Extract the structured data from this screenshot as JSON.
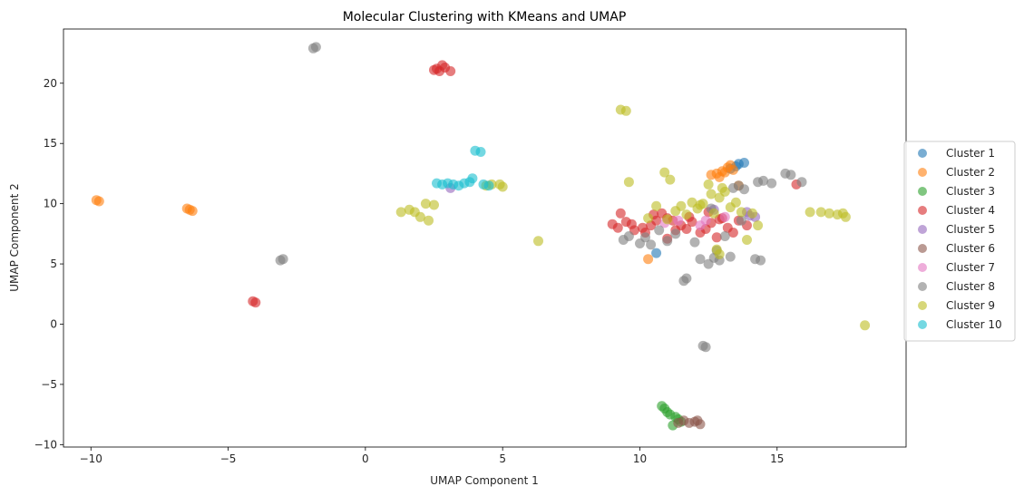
{
  "chart_data": {
    "type": "scatter",
    "title": "Molecular Clustering with KMeans and UMAP",
    "xlabel": "UMAP Component 1",
    "ylabel": "UMAP Component 2",
    "xlim": [
      -11.0,
      19.7
    ],
    "ylim": [
      -10.2,
      24.5
    ],
    "xticks": [
      -10,
      -5,
      0,
      5,
      10,
      15
    ],
    "yticks": [
      -10,
      -5,
      0,
      5,
      10,
      15,
      20
    ],
    "grid": false,
    "legend_position": "outside-right",
    "marker_alpha": 0.6,
    "series": [
      {
        "name": "Cluster 1",
        "color": "#1f77b4",
        "points": [
          [
            13.6,
            13.3
          ],
          [
            13.8,
            13.4
          ],
          [
            13.5,
            13.1
          ],
          [
            10.6,
            5.9
          ],
          [
            13.3,
            12.9
          ]
        ]
      },
      {
        "name": "Cluster 2",
        "color": "#ff7f0e",
        "points": [
          [
            -9.8,
            10.3
          ],
          [
            -9.7,
            10.2
          ],
          [
            -6.5,
            9.6
          ],
          [
            -6.3,
            9.4
          ],
          [
            -6.4,
            9.5
          ],
          [
            10.3,
            5.4
          ],
          [
            12.6,
            12.4
          ],
          [
            12.8,
            12.5
          ],
          [
            13.0,
            12.7
          ],
          [
            13.2,
            13.0
          ],
          [
            13.4,
            12.8
          ],
          [
            13.1,
            12.6
          ],
          [
            13.6,
            11.5
          ],
          [
            12.9,
            12.2
          ],
          [
            13.3,
            13.2
          ]
        ]
      },
      {
        "name": "Cluster 3",
        "color": "#2ca02c",
        "points": [
          [
            10.8,
            -6.8
          ],
          [
            10.9,
            -7.0
          ],
          [
            11.0,
            -7.3
          ],
          [
            11.1,
            -7.5
          ],
          [
            11.3,
            -7.7
          ],
          [
            11.4,
            -7.9
          ],
          [
            11.2,
            -8.4
          ],
          [
            11.5,
            -8.1
          ]
        ]
      },
      {
        "name": "Cluster 4",
        "color": "#d62728",
        "points": [
          [
            2.5,
            21.1
          ],
          [
            2.7,
            21.0
          ],
          [
            2.9,
            21.3
          ],
          [
            3.1,
            21.0
          ],
          [
            2.6,
            21.2
          ],
          [
            2.8,
            21.5
          ],
          [
            -4.1,
            1.9
          ],
          [
            -4.0,
            1.8
          ],
          [
            9.0,
            8.3
          ],
          [
            9.2,
            8.0
          ],
          [
            9.5,
            8.5
          ],
          [
            9.7,
            8.3
          ],
          [
            9.8,
            7.8
          ],
          [
            10.1,
            8.0
          ],
          [
            10.4,
            8.2
          ],
          [
            10.6,
            8.6
          ],
          [
            10.8,
            9.2
          ],
          [
            11.0,
            8.8
          ],
          [
            11.2,
            8.6
          ],
          [
            11.3,
            7.8
          ],
          [
            11.5,
            8.2
          ],
          [
            11.7,
            7.9
          ],
          [
            11.9,
            8.5
          ],
          [
            12.2,
            7.6
          ],
          [
            12.4,
            7.9
          ],
          [
            12.6,
            8.4
          ],
          [
            12.8,
            7.2
          ],
          [
            13.0,
            8.8
          ],
          [
            13.2,
            8.0
          ],
          [
            13.6,
            8.6
          ],
          [
            13.9,
            8.2
          ],
          [
            10.5,
            9.1
          ],
          [
            11.0,
            7.1
          ],
          [
            12.5,
            9.3
          ],
          [
            15.7,
            11.6
          ],
          [
            9.3,
            9.2
          ],
          [
            10.2,
            7.6
          ],
          [
            11.8,
            8.9
          ],
          [
            12.9,
            8.7
          ],
          [
            13.4,
            7.6
          ]
        ]
      },
      {
        "name": "Cluster 5",
        "color": "#9467bd",
        "points": [
          [
            14.0,
            9.0
          ],
          [
            14.2,
            8.9
          ],
          [
            3.1,
            11.3
          ],
          [
            13.9,
            9.3
          ],
          [
            12.7,
            9.5
          ]
        ]
      },
      {
        "name": "Cluster 6",
        "color": "#8c564b",
        "points": [
          [
            11.6,
            -8.0
          ],
          [
            11.8,
            -8.2
          ],
          [
            12.0,
            -8.1
          ],
          [
            12.2,
            -8.3
          ],
          [
            12.1,
            -8.0
          ],
          [
            11.4,
            -8.2
          ]
        ]
      },
      {
        "name": "Cluster 7",
        "color": "#e377c2",
        "points": [
          [
            12.2,
            8.2
          ],
          [
            12.4,
            8.6
          ],
          [
            11.4,
            8.6
          ],
          [
            10.9,
            8.4
          ],
          [
            13.1,
            8.9
          ]
        ]
      },
      {
        "name": "Cluster 8",
        "color": "#7f7f7f",
        "points": [
          [
            -1.9,
            22.9
          ],
          [
            -1.8,
            23.0
          ],
          [
            -3.1,
            5.3
          ],
          [
            -3.0,
            5.4
          ],
          [
            9.4,
            7.0
          ],
          [
            9.6,
            7.3
          ],
          [
            10.0,
            6.7
          ],
          [
            10.2,
            7.2
          ],
          [
            10.4,
            6.6
          ],
          [
            10.7,
            7.8
          ],
          [
            11.0,
            6.9
          ],
          [
            11.6,
            3.6
          ],
          [
            11.7,
            3.8
          ],
          [
            12.0,
            6.8
          ],
          [
            12.2,
            5.4
          ],
          [
            12.3,
            -1.8
          ],
          [
            12.4,
            -1.9
          ],
          [
            12.5,
            5.0
          ],
          [
            12.7,
            5.5
          ],
          [
            12.8,
            6.1
          ],
          [
            12.9,
            5.3
          ],
          [
            13.1,
            7.3
          ],
          [
            13.3,
            5.6
          ],
          [
            13.4,
            11.3
          ],
          [
            13.6,
            11.5
          ],
          [
            13.8,
            11.2
          ],
          [
            14.2,
            5.4
          ],
          [
            14.4,
            5.3
          ],
          [
            14.3,
            11.8
          ],
          [
            14.5,
            11.9
          ],
          [
            14.8,
            11.7
          ],
          [
            15.3,
            12.5
          ],
          [
            15.5,
            12.4
          ],
          [
            15.9,
            11.8
          ],
          [
            13.7,
            8.6
          ],
          [
            11.3,
            7.5
          ],
          [
            12.6,
            9.6
          ]
        ]
      },
      {
        "name": "Cluster 9",
        "color": "#bcbd22",
        "points": [
          [
            9.3,
            17.8
          ],
          [
            9.5,
            17.7
          ],
          [
            9.6,
            11.8
          ],
          [
            1.3,
            9.3
          ],
          [
            1.6,
            9.5
          ],
          [
            1.8,
            9.3
          ],
          [
            2.0,
            8.9
          ],
          [
            2.2,
            10.0
          ],
          [
            2.3,
            8.6
          ],
          [
            2.5,
            9.9
          ],
          [
            4.4,
            11.5
          ],
          [
            4.6,
            11.6
          ],
          [
            4.9,
            11.6
          ],
          [
            5.0,
            11.4
          ],
          [
            6.3,
            6.9
          ],
          [
            10.6,
            9.8
          ],
          [
            10.9,
            12.6
          ],
          [
            11.1,
            12.0
          ],
          [
            11.3,
            9.4
          ],
          [
            11.5,
            9.8
          ],
          [
            11.7,
            9.1
          ],
          [
            11.9,
            10.1
          ],
          [
            12.1,
            9.6
          ],
          [
            12.3,
            10.0
          ],
          [
            12.5,
            11.6
          ],
          [
            12.6,
            10.8
          ],
          [
            12.7,
            9.2
          ],
          [
            12.9,
            10.5
          ],
          [
            13.1,
            11.0
          ],
          [
            13.3,
            9.7
          ],
          [
            13.5,
            10.1
          ],
          [
            13.7,
            9.3
          ],
          [
            13.9,
            7.0
          ],
          [
            14.1,
            9.2
          ],
          [
            14.3,
            8.2
          ],
          [
            12.8,
            6.2
          ],
          [
            12.9,
            5.8
          ],
          [
            16.2,
            9.3
          ],
          [
            16.6,
            9.3
          ],
          [
            16.9,
            9.2
          ],
          [
            17.2,
            9.1
          ],
          [
            17.4,
            9.2
          ],
          [
            17.5,
            8.9
          ],
          [
            18.2,
            -0.1
          ],
          [
            11.0,
            8.7
          ],
          [
            12.2,
            9.9
          ],
          [
            13.0,
            11.3
          ],
          [
            10.3,
            8.8
          ]
        ]
      },
      {
        "name": "Cluster 10",
        "color": "#17becf",
        "points": [
          [
            2.6,
            11.7
          ],
          [
            2.8,
            11.6
          ],
          [
            3.0,
            11.7
          ],
          [
            3.2,
            11.6
          ],
          [
            3.4,
            11.5
          ],
          [
            3.6,
            11.7
          ],
          [
            3.8,
            11.8
          ],
          [
            3.9,
            12.1
          ],
          [
            4.0,
            14.4
          ],
          [
            4.2,
            14.3
          ],
          [
            4.3,
            11.6
          ],
          [
            4.5,
            11.5
          ]
        ]
      }
    ]
  }
}
